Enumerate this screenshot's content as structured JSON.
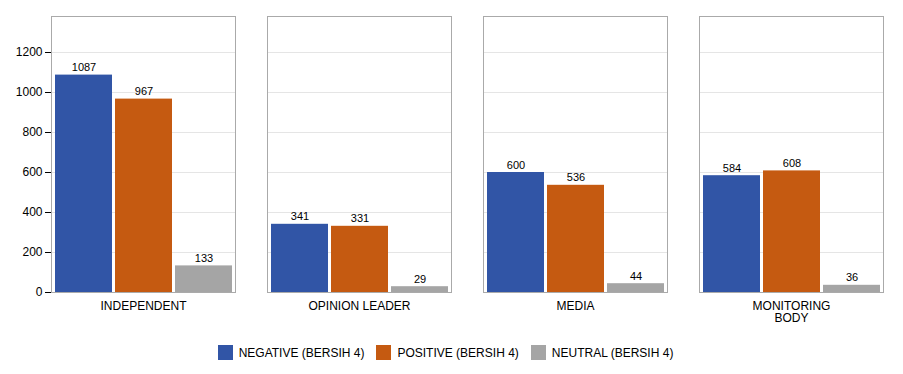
{
  "chart_data": {
    "type": "bar",
    "categories": [
      "INDEPENDENT",
      "OPINION LEADER",
      "MEDIA",
      "MONITORING\nBODY"
    ],
    "series": [
      {
        "name": "NEGATIVE (BERSIH 4)",
        "color": "#3155A6",
        "values": [
          1087,
          341,
          600,
          584
        ]
      },
      {
        "name": "POSITIVE (BERSIH 4)",
        "color": "#C55A11",
        "values": [
          967,
          331,
          536,
          608
        ]
      },
      {
        "name": "NEUTRAL (BERSIH 4)",
        "color": "#A5A5A5",
        "values": [
          133,
          29,
          44,
          36
        ]
      }
    ],
    "ylim": [
      0,
      1380
    ],
    "yticks": [
      0,
      200,
      400,
      600,
      800,
      1000,
      1200
    ],
    "grid": true,
    "data_labels": true,
    "legend": "bottom"
  }
}
